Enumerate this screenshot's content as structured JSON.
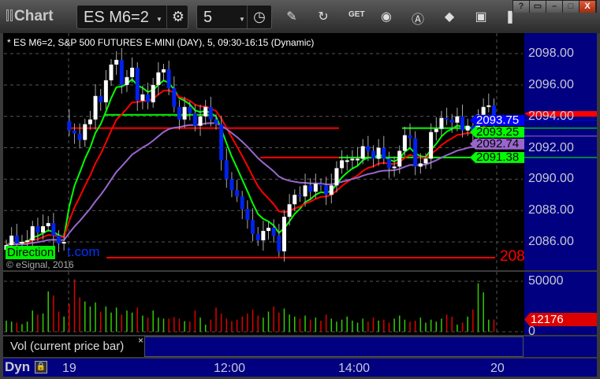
{
  "window": {
    "title": "Chart",
    "controls": [
      "?",
      "▭",
      "–",
      "□",
      "X"
    ]
  },
  "toolbar": {
    "symbol": "ES M6=2",
    "interval": "5",
    "icons": [
      "settings-gear-icon",
      "clock-icon",
      "pencil-draw-icon",
      "refresh-icon",
      "get-data-icon",
      "play-icon",
      "alert-icon",
      "link-icon",
      "comment-icon",
      "pin-icon"
    ]
  },
  "chart": {
    "header": "* ES M6=2, S&P 500 FUTURES E-MINI (DAY), 5, 09:30-16:15 (Dynamic)",
    "watermark_left": "Direction",
    "watermark_right": "t.com",
    "copyright": "© eSignal, 2016",
    "price_ticks": [
      "2098.00",
      "2096.00",
      "2094.00",
      "2092.00",
      "2090.00",
      "2088.00",
      "2086.00"
    ],
    "price_tick_values": [
      2098,
      2096,
      2094,
      2092,
      2090,
      2088,
      2086
    ],
    "clipped_level_label": "208",
    "flags": [
      {
        "text": "2093.75",
        "bg": "#0000ff",
        "fg": "#ffffff",
        "value": 2093.75
      },
      {
        "text": "2093.25",
        "bg": "#00ff00",
        "fg": "#000000",
        "value": 2093.25
      },
      {
        "text": "2092.74",
        "bg": "#9966cc",
        "fg": "#000000",
        "value": 2092.74
      },
      {
        "text": "2091.38",
        "bg": "#00ff00",
        "fg": "#000000",
        "value": 2091.38
      }
    ],
    "colors": {
      "up": "#ffffff",
      "down": "#0022ee",
      "ema_fast": "#00ff00",
      "ema_mid": "#ff0000",
      "ema_slow": "#9966cc",
      "vol_up": "#33cc00",
      "vol_down": "#dd0000"
    },
    "closes": [
      2085.8,
      2086.4,
      2085.9,
      2086.0,
      2086.1,
      2087.0,
      2086.6,
      2087.0,
      2087.2,
      2086.4,
      2085.9,
      2086.0,
      2093.1,
      2092.9,
      2092.5,
      2093.5,
      2093.8,
      2095.3,
      2094.9,
      2096.3,
      2097.3,
      2097.6,
      2096.0,
      2096.5,
      2097.1,
      2095.0,
      2095.4,
      2094.9,
      2096.0,
      2096.8,
      2097.0,
      2095.8,
      2094.6,
      2093.8,
      2094.6,
      2094.2,
      2093.4,
      2094.0,
      2094.6,
      2093.8,
      2093.5,
      2091.2,
      2090.0,
      2089.3,
      2088.9,
      2088.1,
      2087.4,
      2086.5,
      2086.1,
      2086.7,
      2086.9,
      2086.4,
      2085.4,
      2087.6,
      2088.4,
      2089.0,
      2088.9,
      2089.6,
      2089.2,
      2089.7,
      2089.6,
      2089.0,
      2089.6,
      2090.7,
      2091.2,
      2091.2,
      2091.3,
      2091.3,
      2092.1,
      2091.8,
      2091.3,
      2092.0,
      2091.3,
      2090.7,
      2090.8,
      2091.8,
      2092.8,
      2092.6,
      2090.8,
      2091.0,
      2091.3,
      2093.0,
      2093.2,
      2093.9,
      2093.8,
      2093.6,
      2094.0,
      2093.1,
      2093.4,
      2092.9,
      2094.1,
      2094.6,
      2094.7,
      2093.5
    ],
    "session_open": 2093.7,
    "levels": [
      {
        "value": 2093.25,
        "color": "#ff0000"
      },
      {
        "value": 2093.25,
        "color": "#00ff00"
      },
      {
        "value": 2091.38,
        "color": "#00ff00"
      },
      {
        "value": 2091.38,
        "color": "#ff0000"
      },
      {
        "value": 2094.1,
        "color": "#00ff00"
      },
      {
        "value": 2085.0,
        "color": "#ff0000"
      }
    ]
  },
  "volume": {
    "ticks": [
      "50000",
      "0"
    ],
    "last": "12176",
    "values": [
      11000,
      10000,
      9000,
      7500,
      10000,
      21000,
      17000,
      18000,
      40000,
      36000,
      20000,
      15000,
      28000,
      52000,
      34000,
      30000,
      25000,
      29000,
      20000,
      25000,
      19000,
      24000,
      17000,
      21000,
      19000,
      24000,
      16000,
      14000,
      21000,
      14000,
      13000,
      13000,
      14500,
      13000,
      10500,
      10000,
      21000,
      14000,
      7000,
      12000,
      24000,
      18000,
      13000,
      10500,
      12000,
      15000,
      18000,
      22000,
      16000,
      14000,
      20000,
      25000,
      19000,
      23000,
      17000,
      15000,
      13000,
      16000,
      12000,
      14000,
      11000,
      17000,
      13000,
      10000,
      12000,
      15000,
      11000,
      9000,
      13000,
      10000,
      14000,
      11000,
      12000,
      9000,
      13000,
      16000,
      12000,
      10000,
      11000,
      14000,
      9000,
      12000,
      10000,
      13000,
      17000,
      15000,
      7000,
      9000,
      15000,
      22000,
      48000,
      39000,
      12000,
      12176
    ]
  },
  "indicator": {
    "label": "Vol (current price bar)",
    "close": "×"
  },
  "time_axis": {
    "mode": "Dyn",
    "ticks": [
      "19",
      "12:00",
      "14:00",
      "20"
    ]
  }
}
